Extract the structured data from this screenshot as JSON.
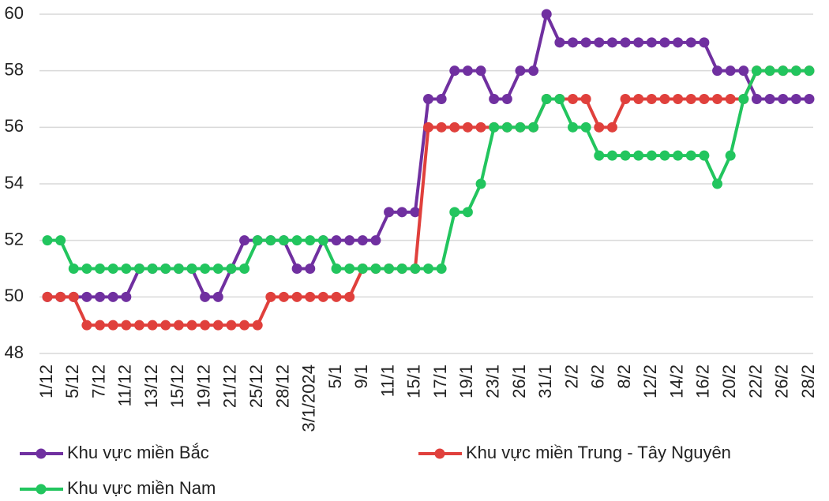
{
  "chart_data": {
    "type": "line",
    "categories": [
      "1/12",
      null,
      "5/12",
      null,
      "7/12",
      null,
      "11/12",
      null,
      "13/12",
      null,
      "15/12",
      null,
      "19/12",
      null,
      "21/12",
      null,
      "25/12",
      null,
      "28/12",
      null,
      "3/1/2024",
      null,
      "5/1",
      null,
      "9/1",
      null,
      "11/1",
      null,
      "15/1",
      null,
      "17/1",
      null,
      "19/1",
      null,
      "23/1",
      null,
      "26/1",
      null,
      "31/1",
      null,
      "2/2",
      null,
      "6/2",
      null,
      "8/2",
      null,
      "12/2",
      null,
      "14/2",
      null,
      "16/2",
      null,
      "20/2",
      null,
      "22/2",
      null,
      "26/2",
      null,
      "28/2"
    ],
    "series": [
      {
        "name": "Khu vực miền Bắc",
        "color": "#7030a0",
        "values": [
          50,
          50,
          50,
          50,
          50,
          50,
          50,
          51,
          51,
          51,
          51,
          51,
          50,
          50,
          51,
          52,
          52,
          52,
          52,
          51,
          51,
          52,
          52,
          52,
          52,
          52,
          53,
          53,
          53,
          57,
          57,
          58,
          58,
          58,
          57,
          57,
          58,
          58,
          60,
          59,
          59,
          59,
          59,
          59,
          59,
          59,
          59,
          59,
          59,
          59,
          59,
          58,
          58,
          58,
          57,
          57,
          57,
          57,
          57
        ]
      },
      {
        "name": "Khu vực miền Trung - Tây Nguyên",
        "color": "#e0403c",
        "values": [
          50,
          50,
          50,
          49,
          49,
          49,
          49,
          49,
          49,
          49,
          49,
          49,
          49,
          49,
          49,
          49,
          49,
          50,
          50,
          50,
          50,
          50,
          50,
          50,
          51,
          51,
          51,
          51,
          51,
          56,
          56,
          56,
          56,
          56,
          56,
          56,
          56,
          56,
          57,
          57,
          57,
          57,
          56,
          56,
          57,
          57,
          57,
          57,
          57,
          57,
          57,
          57,
          57,
          57,
          58,
          58,
          58,
          58,
          58
        ]
      },
      {
        "name": "Khu vực miền Nam",
        "color": "#22c55e",
        "values": [
          52,
          52,
          51,
          51,
          51,
          51,
          51,
          51,
          51,
          51,
          51,
          51,
          51,
          51,
          51,
          51,
          52,
          52,
          52,
          52,
          52,
          52,
          51,
          51,
          51,
          51,
          51,
          51,
          51,
          51,
          51,
          53,
          53,
          54,
          56,
          56,
          56,
          56,
          57,
          57,
          56,
          56,
          55,
          55,
          55,
          55,
          55,
          55,
          55,
          55,
          55,
          54,
          55,
          57,
          58,
          58,
          58,
          58,
          58
        ]
      }
    ],
    "ylim": [
      48,
      60
    ],
    "yticks": [
      48,
      50,
      52,
      54,
      56,
      58,
      60
    ],
    "grid": true,
    "legend": "bottom"
  }
}
